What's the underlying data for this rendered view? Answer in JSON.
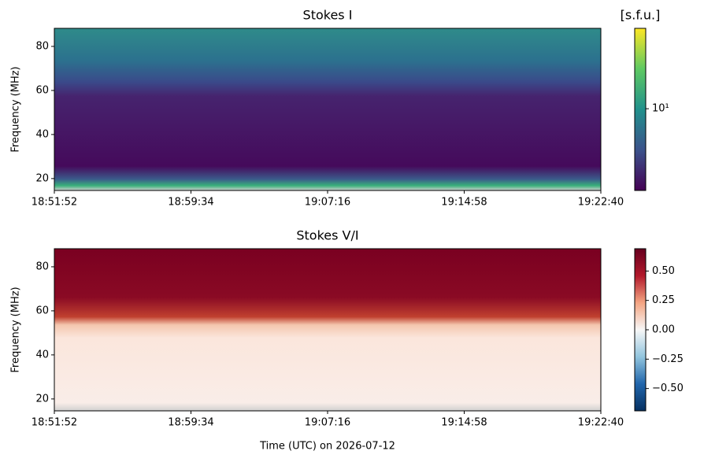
{
  "chart_data": [
    {
      "type": "heatmap",
      "title": "Stokes I",
      "ylabel": "Frequency (MHz)",
      "xlim": [
        "18:51:52",
        "19:22:40"
      ],
      "xticks": [
        "18:51:52",
        "18:59:34",
        "19:07:16",
        "19:14:58",
        "19:22:40"
      ],
      "ylim": [
        14.6,
        88.2
      ],
      "yticks": [
        20,
        40,
        60,
        80
      ],
      "colormap": "viridis",
      "colorbar_label": "[s.f.u.]",
      "cscale": "log",
      "clim": [
        1.8,
        54
      ],
      "cticks": [
        {
          "value": 10,
          "label": "10¹"
        }
      ]
    },
    {
      "type": "heatmap",
      "title": "Stokes V/I",
      "ylabel": "Frequency (MHz)",
      "xlabel": "Time (UTC) on 2026-07-12",
      "xlim": [
        "18:51:52",
        "19:22:40"
      ],
      "xticks": [
        "18:51:52",
        "18:59:34",
        "19:07:16",
        "19:14:58",
        "19:22:40"
      ],
      "ylim": [
        14.6,
        88.2
      ],
      "yticks": [
        20,
        40,
        60,
        80
      ],
      "colormap": "RdBu_r",
      "cscale": "linear",
      "clim": [
        -0.69,
        0.69
      ],
      "cticks": [
        {
          "value": 0.5,
          "label": "0.50"
        },
        {
          "value": 0.25,
          "label": "0.25"
        },
        {
          "value": 0,
          "label": "0.00"
        },
        {
          "value": -0.25,
          "label": "−0.25"
        },
        {
          "value": -0.5,
          "label": "−0.50"
        }
      ]
    }
  ]
}
